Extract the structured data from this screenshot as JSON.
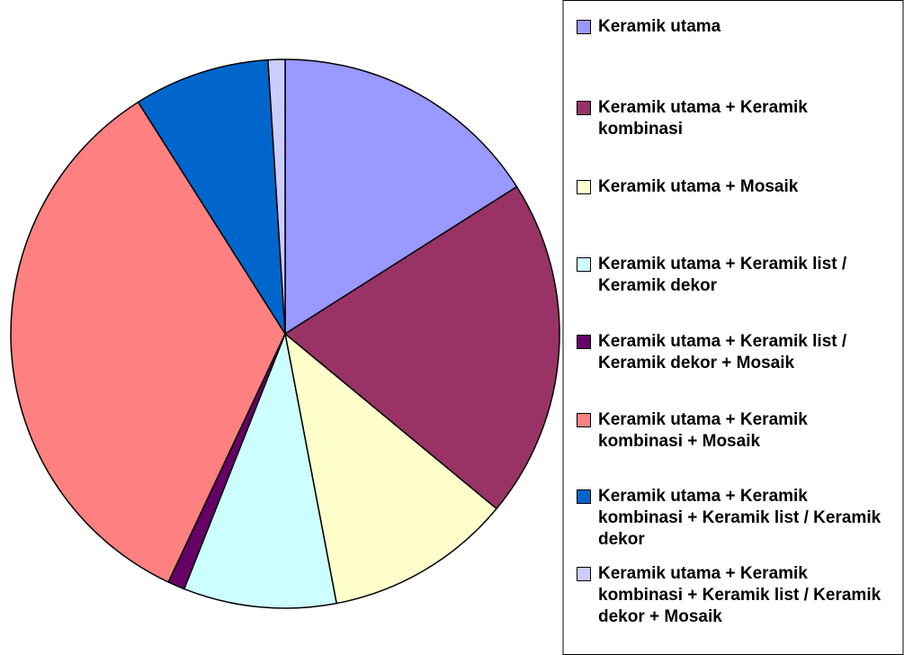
{
  "chart_data": {
    "type": "pie",
    "categories": [
      "Keramik utama",
      "Keramik utama + Keramik kombinasi",
      "Keramik utama + Mosaik",
      "Keramik utama + Keramik list / Keramik dekor",
      "Keramik utama + Keramik list / Keramik dekor + Mosaik",
      "Keramik utama + Keramik kombinasi + Mosaik",
      "Keramik utama + Keramik kombinasi + Keramik list / Keramik dekor",
      "Keramik utama + Keramik kombinasi + Keramik list / Keramik dekor + Mosaik"
    ],
    "values": [
      16,
      20,
      11,
      9,
      1,
      34,
      8,
      1
    ],
    "colors": [
      "#9999ff",
      "#993366",
      "#ffffcc",
      "#ccffff",
      "#660066",
      "#ff8080",
      "#0066cc",
      "#ccccff"
    ],
    "legend": "right"
  }
}
